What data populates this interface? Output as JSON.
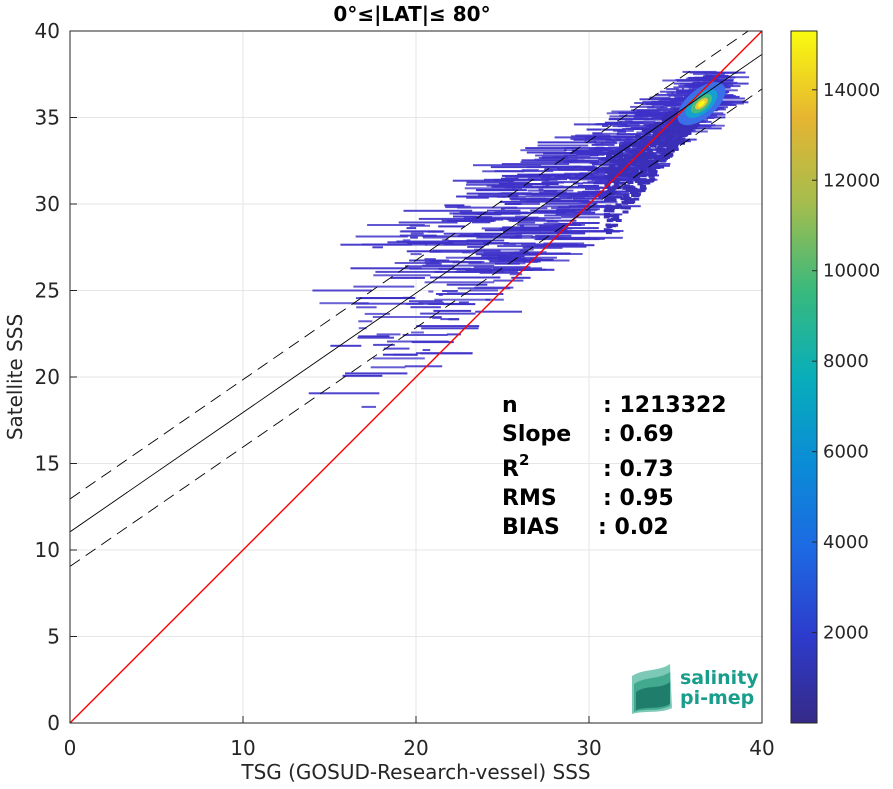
{
  "chart_data": {
    "type": "scatter",
    "title": "0°≤|LAT|≤ 80°",
    "xlabel": "TSG (GOSUD-Research-vessel) SSS",
    "ylabel": "Satellite SSS",
    "xlim": [
      0,
      40
    ],
    "ylim": [
      0,
      40
    ],
    "xticks": [
      "0",
      "10",
      "20",
      "30",
      "40"
    ],
    "yticks": [
      "0",
      "5",
      "10",
      "15",
      "20",
      "25",
      "30",
      "35",
      "40"
    ],
    "grid": true,
    "colorbar": {
      "range": [
        0,
        15300
      ],
      "ticks": [
        "2000",
        "4000",
        "6000",
        "8000",
        "10000",
        "12000",
        "14000"
      ],
      "colormap": "parula"
    },
    "lines": [
      {
        "kind": "identity",
        "slope": 1,
        "intercept": 0,
        "color": "#ff0000"
      },
      {
        "kind": "regression",
        "slope": 0.69,
        "intercept": 11.05,
        "color": "#000000"
      },
      {
        "kind": "regression-upper",
        "slope": 0.69,
        "intercept": 12.95,
        "color": "#000000",
        "dash": true
      },
      {
        "kind": "regression-lower",
        "slope": 0.69,
        "intercept": 9.05,
        "color": "#000000",
        "dash": true
      }
    ],
    "density_core": {
      "x": 36.5,
      "y": 35.8,
      "peak_count": 15300
    },
    "stats": [
      {
        "label": "n",
        "value": ": 1213322"
      },
      {
        "label": "Slope",
        "value": ": 0.69"
      },
      {
        "label": "R",
        "sup": "2",
        "value": ": 0.73"
      },
      {
        "label": "RMS",
        "value": ": 0.95"
      },
      {
        "label": "BIAS",
        "value": ": 0.02"
      }
    ]
  },
  "logo": {
    "line1": "salinity",
    "line2": "pi-mep",
    "color": "#1a9e8c"
  }
}
